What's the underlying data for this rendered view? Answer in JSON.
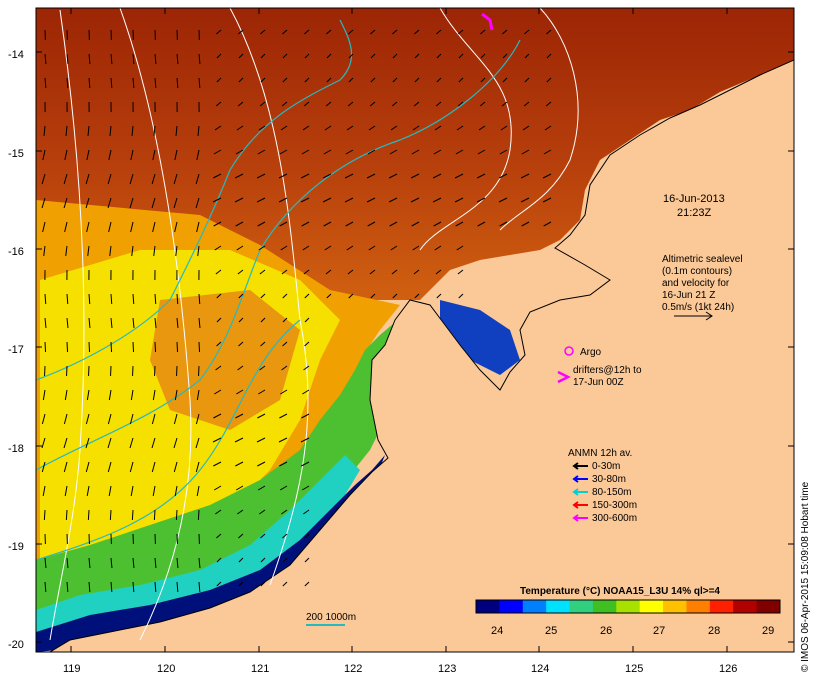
{
  "map": {
    "date": "16-Jun-2013",
    "time": "21:23Z",
    "lat_ticks": [
      "-14",
      "-15",
      "-16",
      "-17",
      "-18",
      "-19",
      "-20"
    ],
    "lon_ticks": [
      "119",
      "120",
      "121",
      "122",
      "123",
      "124",
      "125",
      "126"
    ],
    "extent": {
      "lon_min": 118.6,
      "lon_max": 126.7,
      "lat_min": -20.1,
      "lat_max": -13.6
    },
    "colors": {
      "land": "#fbc998",
      "water_warm": "#c23a0a",
      "coast": "#000000",
      "contour_white": "#ffffff",
      "contour_cyan": "#28b8c0",
      "argo": "#ff00ff"
    }
  },
  "altimetry": {
    "line1": "Altimetric sealevel",
    "line2": "(0.1m contours)",
    "line3": "and velocity for",
    "line4": "16-Jun 21 Z",
    "line5": "0.5m/s (1kt 24h)"
  },
  "argo": {
    "label": "Argo"
  },
  "drifters": {
    "line1": "drifters@12h to",
    "line2": "17-Jun 00Z"
  },
  "anmn": {
    "title": "ANMN 12h av.",
    "items": [
      {
        "label": "0-30m",
        "color": "#000000"
      },
      {
        "label": "30-80m",
        "color": "#0000ff"
      },
      {
        "label": "80-150m",
        "color": "#00d0d0"
      },
      {
        "label": "150-300m",
        "color": "#ff0000"
      },
      {
        "label": "300-600m",
        "color": "#ff00ff"
      }
    ]
  },
  "colorbar": {
    "title": "Temperature (°C) NOAA15_L3U 14% ql>=4",
    "ticks": [
      "24",
      "25",
      "26",
      "27",
      "28",
      "29"
    ],
    "colors": [
      "#00007f",
      "#0000ff",
      "#0080ff",
      "#00e0ff",
      "#30d080",
      "#40c020",
      "#a8e000",
      "#ffff00",
      "#ffc000",
      "#ff8000",
      "#ff2000",
      "#b00000",
      "#800000"
    ]
  },
  "isobath": {
    "label": "200  1000m"
  },
  "credit": "© IMOS 06-Apr-2015 15:09:08 Hobart time"
}
